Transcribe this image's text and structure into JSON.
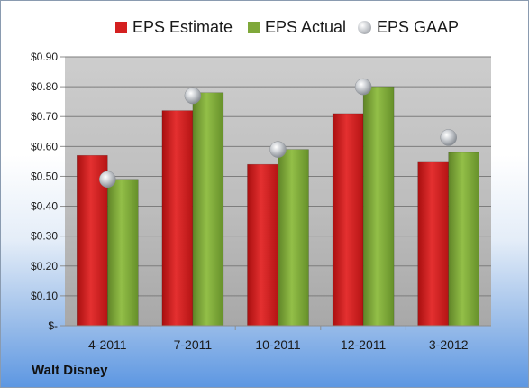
{
  "chart_data": {
    "type": "bar",
    "categories": [
      "4-2011",
      "7-2011",
      "10-2011",
      "12-2011",
      "3-2012"
    ],
    "series": [
      {
        "name": "EPS Estimate",
        "kind": "bar",
        "color": "#d42020",
        "values": [
          0.57,
          0.72,
          0.54,
          0.71,
          0.55
        ]
      },
      {
        "name": "EPS Actual",
        "kind": "bar",
        "color": "#7fa83a",
        "values": [
          0.49,
          0.78,
          0.59,
          0.8,
          0.58
        ]
      },
      {
        "name": "EPS GAAP",
        "kind": "marker",
        "color": "#b8bcc2",
        "values": [
          0.49,
          0.77,
          0.59,
          0.8,
          0.63
        ]
      }
    ],
    "ylim": [
      0,
      0.9
    ],
    "yticks": [
      0,
      0.1,
      0.2,
      0.3,
      0.4,
      0.5,
      0.6,
      0.7,
      0.8,
      0.9
    ],
    "ytick_labels": [
      "$-",
      "$0.10",
      "$0.20",
      "$0.30",
      "$0.40",
      "$0.50",
      "$0.60",
      "$0.70",
      "$0.80",
      "$0.90"
    ],
    "grid": true,
    "legend": "top"
  },
  "company": "Walt Disney"
}
